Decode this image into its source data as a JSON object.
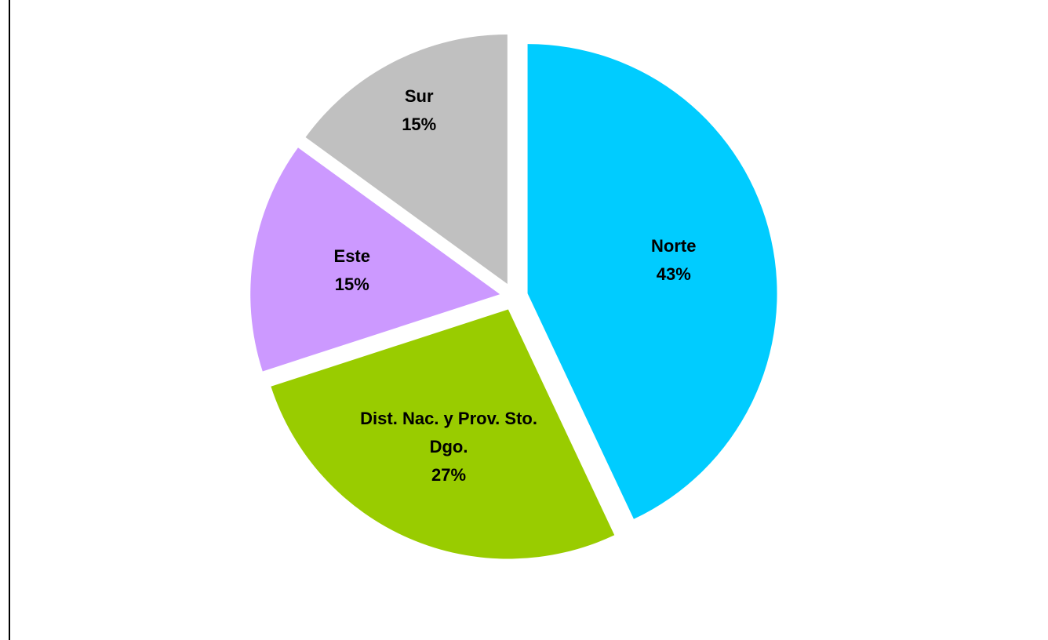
{
  "chart_data": {
    "type": "pie",
    "categories": [
      "Norte",
      "Dist. Nac. y Prov. Sto. Dgo.",
      "Este",
      "Sur"
    ],
    "values": [
      43,
      27,
      15,
      15
    ],
    "value_labels": [
      "43%",
      "27%",
      "15%",
      "15%"
    ],
    "colors": [
      "#00ccff",
      "#99cc00",
      "#cc99ff",
      "#c0c0c0"
    ]
  }
}
